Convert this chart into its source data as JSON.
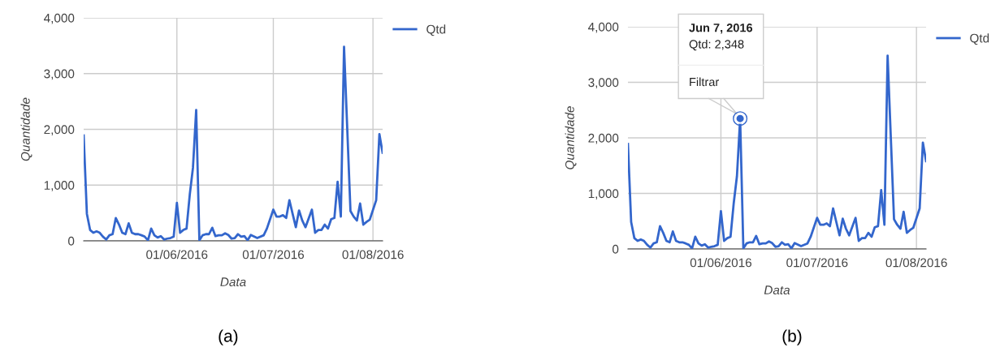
{
  "chart_data": [
    {
      "type": "line",
      "xlabel": "Data",
      "ylabel": "Quantidade",
      "annotations": [
        "(a)"
      ],
      "x": [
        "2016-05-03",
        "2016-05-04",
        "2016-05-05",
        "2016-05-06",
        "2016-05-07",
        "2016-05-08",
        "2016-05-09",
        "2016-05-10",
        "2016-05-11",
        "2016-05-12",
        "2016-05-13",
        "2016-05-14",
        "2016-05-15",
        "2016-05-16",
        "2016-05-17",
        "2016-05-18",
        "2016-05-19",
        "2016-05-20",
        "2016-05-21",
        "2016-05-22",
        "2016-05-23",
        "2016-05-24",
        "2016-05-25",
        "2016-05-26",
        "2016-05-27",
        "2016-05-28",
        "2016-05-29",
        "2016-05-30",
        "2016-05-31",
        "2016-06-01",
        "2016-06-02",
        "2016-06-03",
        "2016-06-04",
        "2016-06-05",
        "2016-06-06",
        "2016-06-07",
        "2016-06-08",
        "2016-06-09",
        "2016-06-10",
        "2016-06-11",
        "2016-06-12",
        "2016-06-13",
        "2016-06-14",
        "2016-06-15",
        "2016-06-16",
        "2016-06-17",
        "2016-06-18",
        "2016-06-19",
        "2016-06-20",
        "2016-06-21",
        "2016-06-22",
        "2016-06-23",
        "2016-06-24",
        "2016-06-26",
        "2016-06-28",
        "2016-06-29",
        "2016-07-01",
        "2016-07-02",
        "2016-07-03",
        "2016-07-04",
        "2016-07-05",
        "2016-07-06",
        "2016-07-07",
        "2016-07-08",
        "2016-07-09",
        "2016-07-10",
        "2016-07-11",
        "2016-07-13",
        "2016-07-14",
        "2016-07-15",
        "2016-07-16",
        "2016-07-17",
        "2016-07-18",
        "2016-07-19",
        "2016-07-20",
        "2016-07-21",
        "2016-07-22",
        "2016-07-23",
        "2016-07-25",
        "2016-07-26",
        "2016-07-27",
        "2016-07-28",
        "2016-07-29",
        "2016-07-30",
        "2016-07-31",
        "2016-08-02",
        "2016-08-03",
        "2016-08-04"
      ],
      "series": [
        {
          "name": "Qtd",
          "color": "#3366cc",
          "values": [
            1890,
            485,
            195,
            145,
            170,
            145,
            75,
            25,
            100,
            120,
            410,
            290,
            145,
            120,
            315,
            145,
            120,
            120,
            100,
            75,
            10,
            220,
            100,
            60,
            85,
            25,
            40,
            50,
            75,
            680,
            145,
            195,
            220,
            825,
            1310,
            2348,
            10,
            100,
            120,
            120,
            235,
            85,
            100,
            100,
            135,
            105,
            40,
            50,
            120,
            75,
            85,
            10,
            105,
            50,
            100,
            220,
            560,
            435,
            435,
            460,
            410,
            730,
            485,
            245,
            545,
            365,
            245,
            560,
            145,
            195,
            195,
            290,
            220,
            390,
            410,
            1060,
            435,
            3480,
            535,
            435,
            365,
            670,
            290,
            340,
            380,
            730,
            1915,
            1580
          ]
        }
      ],
      "xlim": [
        "2016-05-03",
        "2016-08-04"
      ],
      "xticks": [
        {
          "value": "2016-06-01",
          "label": "01/06/2016"
        },
        {
          "value": "2016-07-01",
          "label": "01/07/2016"
        },
        {
          "value": "2016-08-01",
          "label": "01/08/2016"
        }
      ],
      "ylim": [
        0,
        4000
      ],
      "yticks": [
        {
          "value": 0,
          "label": "0"
        },
        {
          "value": 1000,
          "label": "1,000"
        },
        {
          "value": 2000,
          "label": "2,000"
        },
        {
          "value": 3000,
          "label": "3,000"
        },
        {
          "value": 4000,
          "label": "4,000"
        }
      ],
      "grid": true,
      "legend": "top right"
    },
    {
      "type": "line",
      "xlabel": "Data",
      "ylabel": "Quantidade",
      "annotations": [
        "Jun 7, 2016",
        "Qtd: 2,348",
        "Filtrar",
        "(b)"
      ],
      "x": [
        "2016-05-03",
        "2016-05-04",
        "2016-05-05",
        "2016-05-06",
        "2016-05-07",
        "2016-05-08",
        "2016-05-09",
        "2016-05-10",
        "2016-05-11",
        "2016-05-12",
        "2016-05-13",
        "2016-05-14",
        "2016-05-15",
        "2016-05-16",
        "2016-05-17",
        "2016-05-18",
        "2016-05-19",
        "2016-05-20",
        "2016-05-21",
        "2016-05-22",
        "2016-05-23",
        "2016-05-24",
        "2016-05-25",
        "2016-05-26",
        "2016-05-27",
        "2016-05-28",
        "2016-05-29",
        "2016-05-30",
        "2016-05-31",
        "2016-06-01",
        "2016-06-02",
        "2016-06-03",
        "2016-06-04",
        "2016-06-05",
        "2016-06-06",
        "2016-06-07",
        "2016-06-08",
        "2016-06-09",
        "2016-06-10",
        "2016-06-11",
        "2016-06-12",
        "2016-06-13",
        "2016-06-14",
        "2016-06-15",
        "2016-06-16",
        "2016-06-17",
        "2016-06-18",
        "2016-06-19",
        "2016-06-20",
        "2016-06-21",
        "2016-06-22",
        "2016-06-23",
        "2016-06-24",
        "2016-06-26",
        "2016-06-28",
        "2016-06-29",
        "2016-07-01",
        "2016-07-02",
        "2016-07-03",
        "2016-07-04",
        "2016-07-05",
        "2016-07-06",
        "2016-07-07",
        "2016-07-08",
        "2016-07-09",
        "2016-07-10",
        "2016-07-11",
        "2016-07-13",
        "2016-07-14",
        "2016-07-15",
        "2016-07-16",
        "2016-07-17",
        "2016-07-18",
        "2016-07-19",
        "2016-07-20",
        "2016-07-21",
        "2016-07-22",
        "2016-07-23",
        "2016-07-25",
        "2016-07-26",
        "2016-07-27",
        "2016-07-28",
        "2016-07-29",
        "2016-07-30",
        "2016-07-31",
        "2016-08-02",
        "2016-08-03",
        "2016-08-04"
      ],
      "series": [
        {
          "name": "Qtd",
          "color": "#3366cc",
          "values": [
            1890,
            485,
            195,
            145,
            170,
            145,
            75,
            25,
            100,
            120,
            410,
            290,
            145,
            120,
            315,
            145,
            120,
            120,
            100,
            75,
            10,
            220,
            100,
            60,
            85,
            25,
            40,
            50,
            75,
            680,
            145,
            195,
            220,
            825,
            1310,
            2348,
            10,
            100,
            120,
            120,
            235,
            85,
            100,
            100,
            135,
            105,
            40,
            50,
            120,
            75,
            85,
            10,
            105,
            50,
            100,
            220,
            560,
            435,
            435,
            460,
            410,
            730,
            485,
            245,
            545,
            365,
            245,
            560,
            145,
            195,
            195,
            290,
            220,
            390,
            410,
            1060,
            435,
            3480,
            535,
            435,
            365,
            670,
            290,
            340,
            380,
            730,
            1915,
            1580
          ]
        },
        {
          "type": "scatter",
          "color": "#3366cc",
          "x": [
            "2016-06-07"
          ],
          "values": [
            2348
          ]
        }
      ],
      "xlim": [
        "2016-05-03",
        "2016-08-04"
      ],
      "xticks": [
        {
          "value": "2016-06-01",
          "label": "01/06/2016"
        },
        {
          "value": "2016-07-01",
          "label": "01/07/2016"
        },
        {
          "value": "2016-08-01",
          "label": "01/08/2016"
        }
      ],
      "ylim": [
        0,
        4000
      ],
      "yticks": [
        {
          "value": 0,
          "label": "0"
        },
        {
          "value": 1000,
          "label": "1,000"
        },
        {
          "value": 2000,
          "label": "2,000"
        },
        {
          "value": 3000,
          "label": "3,000"
        },
        {
          "value": 4000,
          "label": "4,000"
        }
      ],
      "grid": true,
      "legend": "top right"
    }
  ]
}
